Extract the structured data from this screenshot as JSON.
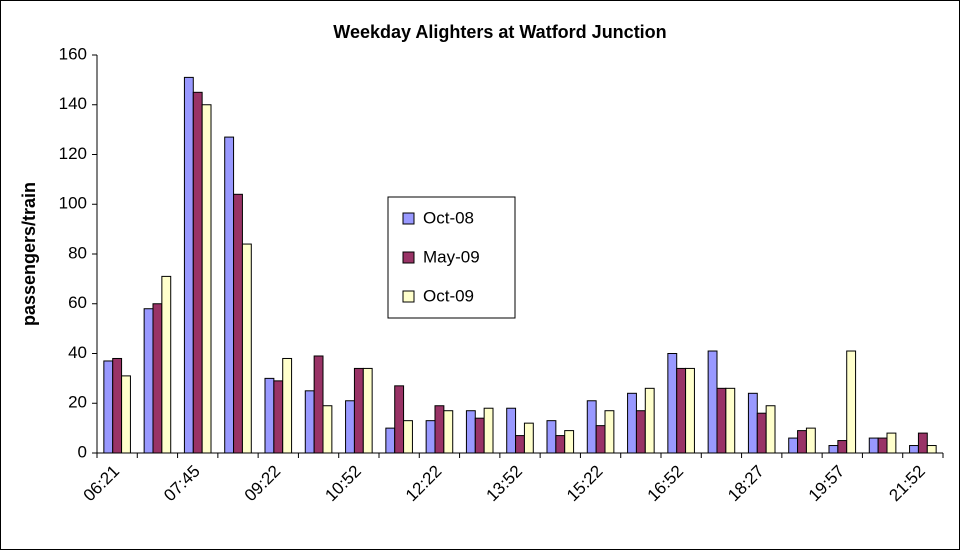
{
  "chart_data": {
    "type": "bar",
    "title": "Weekday Alighters at Watford Junction",
    "y_label": "passengers/train",
    "categories": [
      "06:21",
      null,
      "07:45",
      null,
      "09:22",
      null,
      "10:52",
      null,
      "12:22",
      null,
      "13:52",
      null,
      "15:22",
      null,
      "16:52",
      null,
      "18:27",
      null,
      "19:57",
      null,
      "21:52"
    ],
    "series": [
      {
        "name": "Oct-08",
        "color": "#9999ff",
        "values": [
          37,
          58,
          151,
          127,
          30,
          25,
          21,
          10,
          13,
          17,
          18,
          13,
          21,
          24,
          40,
          41,
          24,
          6,
          3,
          6,
          3
        ]
      },
      {
        "name": "May-09",
        "color": "#993366",
        "values": [
          38,
          60,
          145,
          104,
          29,
          39,
          34,
          27,
          19,
          14,
          7,
          7,
          11,
          17,
          34,
          26,
          16,
          9,
          5,
          6,
          8
        ]
      },
      {
        "name": "Oct-09",
        "color": "#ffffcc",
        "values": [
          31,
          71,
          140,
          84,
          38,
          19,
          34,
          13,
          17,
          18,
          12,
          9,
          17,
          26,
          34,
          26,
          19,
          10,
          41,
          8,
          3
        ]
      }
    ],
    "ylim": [
      0,
      160
    ],
    "yticks": [
      0,
      20,
      40,
      60,
      80,
      100,
      120,
      140,
      160
    ],
    "grid": false,
    "legend": "center"
  }
}
